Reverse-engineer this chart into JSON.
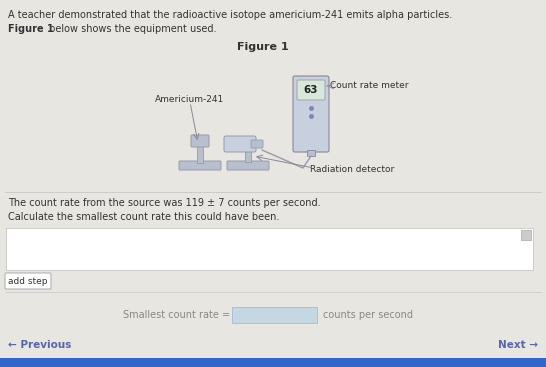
{
  "bg_color": "#e8e6e0",
  "title_text": "Figure 1",
  "label_americium": "Americium-241",
  "label_count_rate_meter": "Count rate meter",
  "label_radiation_detector": "Radiation detector",
  "display_number": "63",
  "intro_line1": "A teacher demonstrated that the radioactive isotope americium-241 emits alpha particles.",
  "intro_line2_bold": "Figure 1",
  "intro_line2_rest": " below shows the equipment used.",
  "count_rate_text": "The count rate from the source was 119 ± 7 counts per second.",
  "calculate_text": "Calculate the smallest count rate this could have been.",
  "add_step_text": "add step",
  "smallest_label": "Smallest count rate =",
  "units_text": "counts per second",
  "prev_text": "← Previous",
  "next_text": "Next →",
  "device_color": "#b8c0d0",
  "device_color_light": "#c8d0e0",
  "display_color": "#d8e8d8",
  "source_color": "#c0c8d8",
  "answer_box_color": "#c4d8e4",
  "input_box_color": "#ffffff",
  "nav_color": "#5566aa",
  "bottom_bar_color": "#3366cc",
  "arrow_color": "#888899",
  "text_color": "#333333",
  "faint_text_color": "#888888"
}
